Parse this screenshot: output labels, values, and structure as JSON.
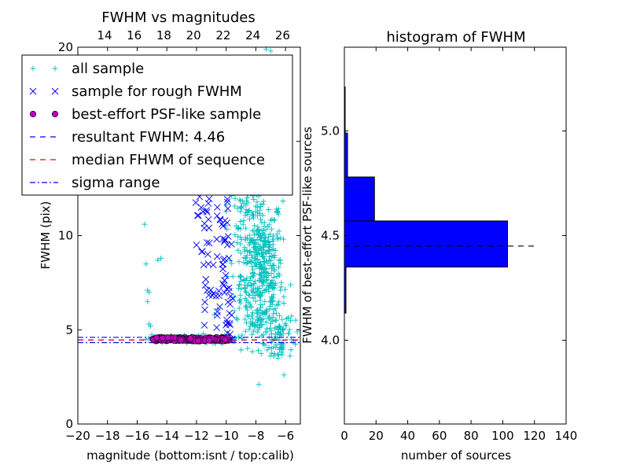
{
  "chart_data": [
    {
      "type": "scatter",
      "title": "FWHM vs magnitudes",
      "xlabel": "magnitude (bottom:isnt / top:calib)",
      "ylabel": "FWHM (pix)",
      "xlim": [
        -20,
        -5
      ],
      "ylim": [
        0,
        20
      ],
      "top_xlim": [
        12.2,
        27.2
      ],
      "x_ticks": [
        "−20",
        "−18",
        "−16",
        "−14",
        "−12",
        "−10",
        "−8",
        "−6"
      ],
      "x_tick_values": [
        -20,
        -18,
        -16,
        -14,
        -12,
        -10,
        -8,
        -6
      ],
      "y_ticks": [
        "0",
        "5",
        "10",
        "15",
        "20"
      ],
      "y_tick_values": [
        0,
        5,
        10,
        15,
        20
      ],
      "top_ticks": [
        "14",
        "16",
        "18",
        "20",
        "22",
        "24",
        "26"
      ],
      "top_tick_values": [
        14,
        16,
        18,
        20,
        22,
        24,
        26
      ],
      "grid": false,
      "legend_position": "top-left",
      "legend": [
        {
          "label": "all sample",
          "marker": "plus",
          "color": "#00bfbf"
        },
        {
          "label": "sample for rough FWHM",
          "marker": "x",
          "color": "#0000ff"
        },
        {
          "label": "best-effort PSF-like sample",
          "marker": "circle",
          "color": "#bf00bf"
        },
        {
          "label": "resultant FWHM: 4.46",
          "marker": "dashed",
          "color": "#0000ff"
        },
        {
          "label": "median FHWM of sequence",
          "marker": "dashed",
          "color": "#ff0000"
        },
        {
          "label": "sigma range",
          "marker": "dashdot",
          "color": "#0000ff"
        }
      ],
      "series": [
        {
          "name": "all sample",
          "color": "#00bfbf",
          "clusters": [
            {
              "x": -7.6,
              "y": 8.0,
              "sx": 0.7,
              "sy": 2.2,
              "n": 420
            },
            {
              "x": -8.6,
              "y": 11.0,
              "sx": 0.6,
              "sy": 3.2,
              "n": 160
            },
            {
              "x": -9.3,
              "y": 14.5,
              "sx": 0.4,
              "sy": 3.0,
              "n": 60
            },
            {
              "x": -6.4,
              "y": 4.8,
              "sx": 0.5,
              "sy": 0.9,
              "n": 90
            },
            {
              "x": -12.5,
              "y": 4.5,
              "sx": 1.5,
              "sy": 0.12,
              "n": 80
            }
          ],
          "points": [
            [
              -15.5,
              10.6
            ],
            [
              -15.4,
              8.5
            ],
            [
              -15.3,
              7.1
            ],
            [
              -15.2,
              7.0
            ],
            [
              -15.3,
              6.5
            ],
            [
              -15.2,
              5.3
            ],
            [
              -15.1,
              5.2
            ],
            [
              -14.6,
              8.7
            ],
            [
              -14.4,
              8.8
            ],
            [
              -10.8,
              5.8
            ],
            [
              -10.6,
              6.1
            ],
            [
              -10.1,
              4.6
            ],
            [
              -7.8,
              2.1
            ],
            [
              -6.1,
              2.6
            ],
            [
              -6.5,
              3.5
            ],
            [
              -7.0,
              19.8
            ],
            [
              -7.3,
              19.9
            ],
            [
              -8.2,
              17.8
            ]
          ]
        },
        {
          "name": "sample for rough FWHM",
          "color": "#0000ff",
          "columns": [
            {
              "x": -11.5,
              "ylo": 4.7,
              "yhi": 12.0,
              "n": 12
            },
            {
              "x": -11.1,
              "ylo": 4.7,
              "yhi": 12.0,
              "n": 14
            },
            {
              "x": -10.6,
              "ylo": 4.8,
              "yhi": 11.5,
              "n": 10
            },
            {
              "x": -10.2,
              "ylo": 5.0,
              "yhi": 11.0,
              "n": 20
            },
            {
              "x": -9.9,
              "ylo": 4.8,
              "yhi": 13.0,
              "n": 20
            },
            {
              "x": -9.7,
              "ylo": 4.3,
              "yhi": 7.0,
              "n": 8
            },
            {
              "x": -12.0,
              "ylo": 11.0,
              "yhi": 12.2,
              "n": 4
            }
          ],
          "points": [
            [
              -12.0,
              9.5
            ],
            [
              -11.2,
              8.5
            ],
            [
              -10.6,
              11.5
            ],
            [
              -10.2,
              13.0
            ],
            [
              -10.0,
              14.8
            ],
            [
              -9.8,
              14.2
            ],
            [
              -9.9,
              15.0
            ]
          ]
        },
        {
          "name": "best-effort PSF-like sample",
          "color": "#bf00bf",
          "x_range": [
            -15.0,
            -9.8
          ],
          "y_center": 4.5,
          "y_spread": 0.1,
          "n": 160
        }
      ],
      "lines": [
        {
          "name": "resultant FWHM: 4.46",
          "y": 4.46,
          "style": "dashed",
          "color": "#0000ff"
        },
        {
          "name": "median FHWM of sequence",
          "y": 4.46,
          "style": "dashed",
          "color": "#ff0000"
        },
        {
          "name": "sigma range",
          "y": 4.6,
          "style": "dashdot",
          "color": "#0000ff"
        },
        {
          "name": "sigma range",
          "y": 4.32,
          "style": "dashdot",
          "color": "#0000ff"
        }
      ]
    },
    {
      "type": "bar",
      "orientation": "horizontal",
      "title": "histogram of FWHM",
      "xlabel": "number of sources",
      "ylabel": "FWHM of best-effort PSF-like sources",
      "xlim": [
        0,
        140
      ],
      "ylim": [
        3.6,
        5.4
      ],
      "x_ticks": [
        "0",
        "20",
        "40",
        "60",
        "80",
        "100",
        "120",
        "140"
      ],
      "x_tick_values": [
        0,
        20,
        40,
        60,
        80,
        100,
        120,
        140
      ],
      "y_ticks": [
        "4.0",
        "4.5",
        "5.0"
      ],
      "y_tick_values": [
        4.0,
        4.5,
        5.0
      ],
      "grid": false,
      "bar_color": "#0000ff",
      "bins": [
        {
          "y0": 4.13,
          "y1": 4.35,
          "count": 1
        },
        {
          "y0": 4.35,
          "y1": 4.57,
          "count": 103
        },
        {
          "y0": 4.57,
          "y1": 4.78,
          "count": 19
        },
        {
          "y0": 4.78,
          "y1": 4.99,
          "count": 2
        },
        {
          "y0": 4.99,
          "y1": 5.21,
          "count": 0.5
        }
      ],
      "reference_line": {
        "y": 4.45,
        "x_range": [
          0,
          120
        ],
        "style": "dashed",
        "color": "#000000"
      }
    }
  ]
}
